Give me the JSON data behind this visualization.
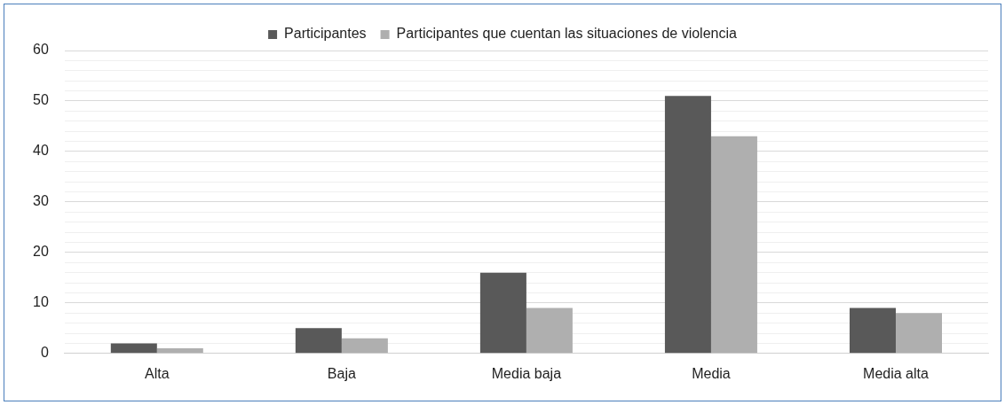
{
  "chart_data": {
    "type": "bar",
    "categories": [
      "Alta",
      "Baja",
      "Media baja",
      "Media",
      "Media alta"
    ],
    "series": [
      {
        "name": "Participantes",
        "color": "#595959",
        "values": [
          2,
          5,
          16,
          51,
          9
        ]
      },
      {
        "name": "Participantes que cuentan las situaciones de violencia",
        "color": "#afafaf",
        "values": [
          1,
          3,
          9,
          43,
          8
        ]
      }
    ],
    "ylim": [
      0,
      60
    ],
    "yticks": [
      0,
      {
        "value": 2,
        "label": null
      },
      {
        "value": 4,
        "label": null
      },
      {
        "value": 6,
        "label": null
      },
      {
        "value": 8,
        "label": null
      },
      10,
      {
        "value": 12,
        "label": null
      },
      {
        "value": 14,
        "label": null
      },
      {
        "value": 16,
        "label": null
      },
      {
        "value": 18,
        "label": null
      },
      20,
      {
        "value": 22,
        "label": null
      },
      {
        "value": 24,
        "label": null
      },
      {
        "value": 26,
        "label": null
      },
      {
        "value": 28,
        "label": null
      },
      30,
      {
        "value": 32,
        "label": null
      },
      {
        "value": 34,
        "label": null
      },
      {
        "value": 36,
        "label": null
      },
      {
        "value": 38,
        "label": null
      },
      40,
      {
        "value": 42,
        "label": null
      },
      {
        "value": 44,
        "label": null
      },
      {
        "value": 46,
        "label": null
      },
      {
        "value": 48,
        "label": null
      },
      50,
      {
        "value": 52,
        "label": null
      },
      {
        "value": 54,
        "label": null
      },
      {
        "value": 56,
        "label": null
      },
      {
        "value": 58,
        "label": null
      },
      60
    ],
    "grid": "y",
    "legend": "top"
  }
}
